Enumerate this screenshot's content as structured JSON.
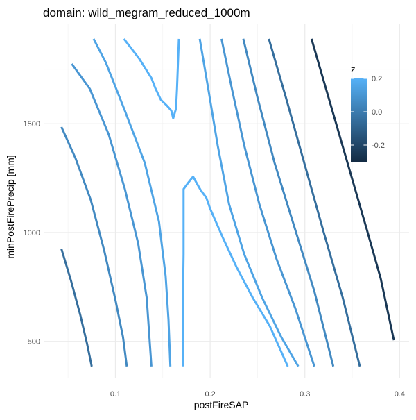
{
  "chart_data": {
    "type": "line",
    "title": "domain: wild_megram_reduced_1000m",
    "xlabel": "postFireSAP",
    "ylabel": "minPostFirePrecip [mm]",
    "xlim": [
      0.025,
      0.41
    ],
    "ylim": [
      330,
      1960
    ],
    "x_ticks": [
      {
        "value": 0.1,
        "label": "0.1"
      },
      {
        "value": 0.2,
        "label": "0.2"
      },
      {
        "value": 0.3,
        "label": "0.3"
      },
      {
        "value": 0.4,
        "label": "0.4"
      }
    ],
    "y_ticks": [
      {
        "value": 500,
        "label": "500"
      },
      {
        "value": 1000,
        "label": "1000"
      },
      {
        "value": 1500,
        "label": "1500"
      }
    ],
    "grid": true,
    "legend": {
      "title": "z",
      "placement": "right-top",
      "type": "colorbar",
      "limits": [
        -0.3,
        0.2
      ],
      "ticks": [
        {
          "value": 0.2,
          "label": "0.2"
        },
        {
          "value": 0.0,
          "label": "0.0"
        },
        {
          "value": -0.2,
          "label": "-0.2"
        }
      ],
      "color_low": "#132B43",
      "color_high": "#56B1F7"
    },
    "series": [
      {
        "z": -0.05,
        "points": [
          [
            0.043,
            925
          ],
          [
            0.053,
            780
          ],
          [
            0.063,
            620
          ],
          [
            0.07,
            490
          ],
          [
            0.075,
            385
          ]
        ]
      },
      {
        "z": 0.05,
        "points": [
          [
            0.043,
            1485
          ],
          [
            0.058,
            1340
          ],
          [
            0.074,
            1150
          ],
          [
            0.088,
            920
          ],
          [
            0.1,
            690
          ],
          [
            0.108,
            520
          ],
          [
            0.112,
            385
          ]
        ]
      },
      {
        "z": 0.1,
        "points": [
          [
            0.054,
            1775
          ],
          [
            0.073,
            1660
          ],
          [
            0.093,
            1450
          ],
          [
            0.11,
            1200
          ],
          [
            0.124,
            950
          ],
          [
            0.133,
            700
          ],
          [
            0.138,
            385
          ]
        ]
      },
      {
        "z": 0.15,
        "points": [
          [
            0.077,
            1890
          ],
          [
            0.09,
            1780
          ],
          [
            0.11,
            1560
          ],
          [
            0.131,
            1320
          ],
          [
            0.146,
            1050
          ],
          [
            0.153,
            800
          ],
          [
            0.156,
            600
          ],
          [
            0.158,
            385
          ]
        ]
      },
      {
        "z": 0.2,
        "points": [
          [
            0.109,
            1890
          ],
          [
            0.125,
            1800
          ],
          [
            0.138,
            1710
          ],
          [
            0.142,
            1665
          ],
          [
            0.148,
            1610
          ],
          [
            0.155,
            1580
          ],
          [
            0.159,
            1560
          ],
          [
            0.161,
            1525
          ],
          [
            0.164,
            1570
          ],
          [
            0.165,
            1660
          ],
          [
            0.167,
            1890
          ]
        ]
      },
      {
        "z": 0.2,
        "points": [
          [
            0.171,
            385
          ],
          [
            0.171,
            600
          ],
          [
            0.172,
            900
          ],
          [
            0.172,
            1200
          ],
          [
            0.177,
            1230
          ],
          [
            0.182,
            1257
          ],
          [
            0.186,
            1225
          ],
          [
            0.19,
            1195
          ],
          [
            0.196,
            1160
          ],
          [
            0.2,
            1110
          ],
          [
            0.213,
            980
          ],
          [
            0.228,
            840
          ],
          [
            0.245,
            700
          ],
          [
            0.263,
            570
          ],
          [
            0.282,
            385
          ]
        ]
      },
      {
        "z": 0.15,
        "points": [
          [
            0.189,
            1890
          ],
          [
            0.198,
            1660
          ],
          [
            0.208,
            1400
          ],
          [
            0.22,
            1130
          ],
          [
            0.236,
            900
          ],
          [
            0.255,
            700
          ],
          [
            0.275,
            520
          ],
          [
            0.293,
            385
          ]
        ]
      },
      {
        "z": 0.1,
        "points": [
          [
            0.212,
            1890
          ],
          [
            0.223,
            1660
          ],
          [
            0.236,
            1400
          ],
          [
            0.252,
            1130
          ],
          [
            0.27,
            880
          ],
          [
            0.29,
            650
          ],
          [
            0.31,
            385
          ]
        ]
      },
      {
        "z": 0.05,
        "points": [
          [
            0.235,
            1890
          ],
          [
            0.25,
            1620
          ],
          [
            0.268,
            1320
          ],
          [
            0.29,
            1010
          ],
          [
            0.31,
            730
          ],
          [
            0.33,
            385
          ]
        ]
      },
      {
        "z": -0.05,
        "points": [
          [
            0.262,
            1890
          ],
          [
            0.28,
            1620
          ],
          [
            0.3,
            1310
          ],
          [
            0.32,
            1000
          ],
          [
            0.34,
            700
          ],
          [
            0.358,
            385
          ]
        ]
      },
      {
        "z": -0.25,
        "points": [
          [
            0.307,
            1890
          ],
          [
            0.325,
            1620
          ],
          [
            0.345,
            1320
          ],
          [
            0.365,
            1020
          ],
          [
            0.38,
            790
          ],
          [
            0.394,
            505
          ]
        ]
      }
    ]
  }
}
